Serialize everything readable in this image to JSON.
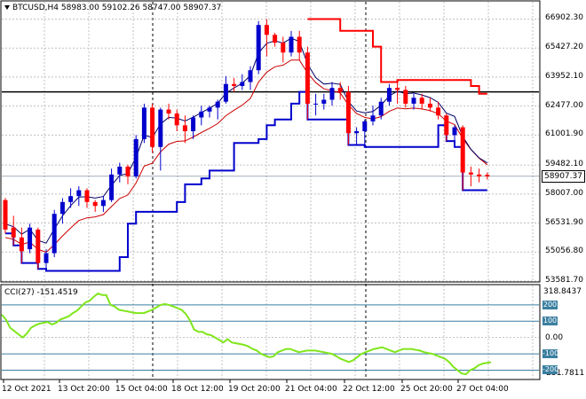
{
  "header": {
    "symbol": "BTCUSD,H4",
    "open": "58983.00",
    "high": "59102.26",
    "low": "58747.00",
    "close": "58907.37"
  },
  "indicator": {
    "title": "CCI(27) -151.4519",
    "max_label": "318.8437",
    "min_label": "-251.7811",
    "levels": [
      "200",
      "100",
      "0.00",
      "-100",
      "-200"
    ]
  },
  "price_axis": [
    "66902.30",
    "65427.20",
    "63952.10",
    "62477.00",
    "61001.90",
    "59482.10",
    "58007.00",
    "56531.90",
    "55056.80",
    "53581.70"
  ],
  "current_price": "58907.37",
  "time_axis": [
    "12 Oct 2021",
    "13 Oct 20:00",
    "15 Oct 04:00",
    "18 Oct 12:00",
    "19 Oct 20:00",
    "21 Oct 04:00",
    "22 Oct 12:00",
    "25 Oct 20:00",
    "27 Oct 04:00"
  ],
  "colors": {
    "bull": "#0000cd",
    "bear": "#ff0000",
    "support": "#0000cd",
    "resistance": "#ff0000",
    "cci": "#7fe61a",
    "grid": "#c0c0c0"
  },
  "chart_data": [
    {
      "type": "candlestick",
      "ylim": [
        53581.7,
        67600
      ],
      "horizontal_line": 63200,
      "candles": [
        [
          57700,
          57800,
          56000,
          56200
        ],
        [
          56300,
          56900,
          55400,
          55800
        ],
        [
          55800,
          56300,
          54500,
          55100
        ],
        [
          55200,
          56500,
          55000,
          56300
        ],
        [
          56200,
          56300,
          54200,
          54500
        ],
        [
          54500,
          55200,
          54100,
          55000
        ],
        [
          55000,
          57200,
          54800,
          57000
        ],
        [
          57000,
          57800,
          56500,
          57600
        ],
        [
          57600,
          58300,
          57300,
          57900
        ],
        [
          57900,
          58400,
          57400,
          58200
        ],
        [
          58200,
          58300,
          57300,
          57600
        ],
        [
          57600,
          57700,
          57100,
          57400
        ],
        [
          57400,
          57900,
          57100,
          57700
        ],
        [
          57700,
          59300,
          57600,
          59000
        ],
        [
          59000,
          59600,
          58600,
          59400
        ],
        [
          59400,
          59500,
          58500,
          58900
        ],
        [
          58900,
          61000,
          58800,
          60800
        ],
        [
          60800,
          62600,
          60600,
          62400
        ],
        [
          62400,
          62600,
          60100,
          60400
        ],
        [
          60400,
          62400,
          59200,
          62300
        ],
        [
          62300,
          62600,
          61800,
          62100
        ],
        [
          62100,
          62300,
          61200,
          61500
        ],
        [
          61500,
          62000,
          60600,
          61200
        ],
        [
          61200,
          62000,
          60800,
          61900
        ],
        [
          61900,
          62500,
          61500,
          62200
        ],
        [
          62200,
          62500,
          61900,
          62400
        ],
        [
          62400,
          62800,
          61800,
          62700
        ],
        [
          62700,
          64000,
          62600,
          63600
        ],
        [
          63600,
          63900,
          63200,
          63500
        ],
        [
          63500,
          64100,
          63300,
          63700
        ],
        [
          63700,
          64500,
          63300,
          64300
        ],
        [
          64300,
          66800,
          64100,
          66600
        ],
        [
          66600,
          66900,
          65000,
          66100
        ],
        [
          66100,
          66200,
          65500,
          65700
        ],
        [
          65700,
          66000,
          64700,
          65200
        ],
        [
          65200,
          66300,
          65000,
          66000
        ],
        [
          66000,
          66300,
          64800,
          65200
        ],
        [
          65200,
          65500,
          61800,
          62600
        ],
        [
          62600,
          63100,
          62000,
          62600
        ],
        [
          62600,
          63100,
          62300,
          62800
        ],
        [
          62800,
          63700,
          62500,
          63400
        ],
        [
          63400,
          63700,
          62800,
          63200
        ],
        [
          63200,
          63500,
          60500,
          61100
        ],
        [
          61100,
          61400,
          60500,
          61200
        ],
        [
          61200,
          61800,
          60400,
          61700
        ],
        [
          61700,
          62500,
          61500,
          62000
        ],
        [
          62000,
          62900,
          61800,
          62700
        ],
        [
          62700,
          63600,
          62500,
          63400
        ],
        [
          63400,
          63800,
          62600,
          63300
        ],
        [
          63300,
          63500,
          62400,
          62600
        ],
        [
          62600,
          63100,
          62300,
          62900
        ],
        [
          62900,
          63100,
          62300,
          62600
        ],
        [
          62600,
          62900,
          62200,
          62400
        ],
        [
          62400,
          62700,
          61800,
          62000
        ],
        [
          62000,
          62100,
          60700,
          61000
        ],
        [
          61000,
          61500,
          60400,
          61400
        ],
        [
          61400,
          61500,
          58200,
          59100
        ],
        [
          59100,
          59400,
          58400,
          59000
        ],
        [
          59000,
          59300,
          58600,
          58900
        ],
        [
          58983,
          59102,
          58747,
          58907
        ]
      ]
    },
    {
      "type": "line",
      "name": "CCI(27)",
      "ylim": [
        -251.7811,
        318.8437
      ],
      "values": [
        140,
        110,
        60,
        40,
        20,
        0,
        25,
        60,
        75,
        85,
        90,
        95,
        80,
        90,
        110,
        120,
        130,
        150,
        165,
        190,
        215,
        225,
        250,
        270,
        260,
        260,
        200,
        190,
        170,
        165,
        160,
        155,
        150,
        150,
        150,
        160,
        170,
        185,
        200,
        205,
        200,
        190,
        180,
        170,
        145,
        105,
        50,
        35,
        35,
        20,
        15,
        0,
        -15,
        -30,
        -10,
        -30,
        -35,
        -40,
        -45,
        -55,
        -70,
        -80,
        -100,
        -110,
        -120,
        -115,
        -90,
        -80,
        -70,
        -70,
        -80,
        -90,
        -85,
        -80,
        -80,
        -80,
        -85,
        -90,
        -95,
        -100,
        -115,
        -130,
        -140,
        -150,
        -140,
        -120,
        -100,
        -90,
        -80,
        -70,
        -65,
        -60,
        -70,
        -80,
        -90,
        -80,
        -70,
        -70,
        -70,
        -75,
        -80,
        -90,
        -95,
        -100,
        -110,
        -120,
        -130,
        -150,
        -180,
        -200,
        -220,
        -225,
        -200,
        -190,
        -170,
        -160,
        -155,
        -151
      ]
    }
  ]
}
